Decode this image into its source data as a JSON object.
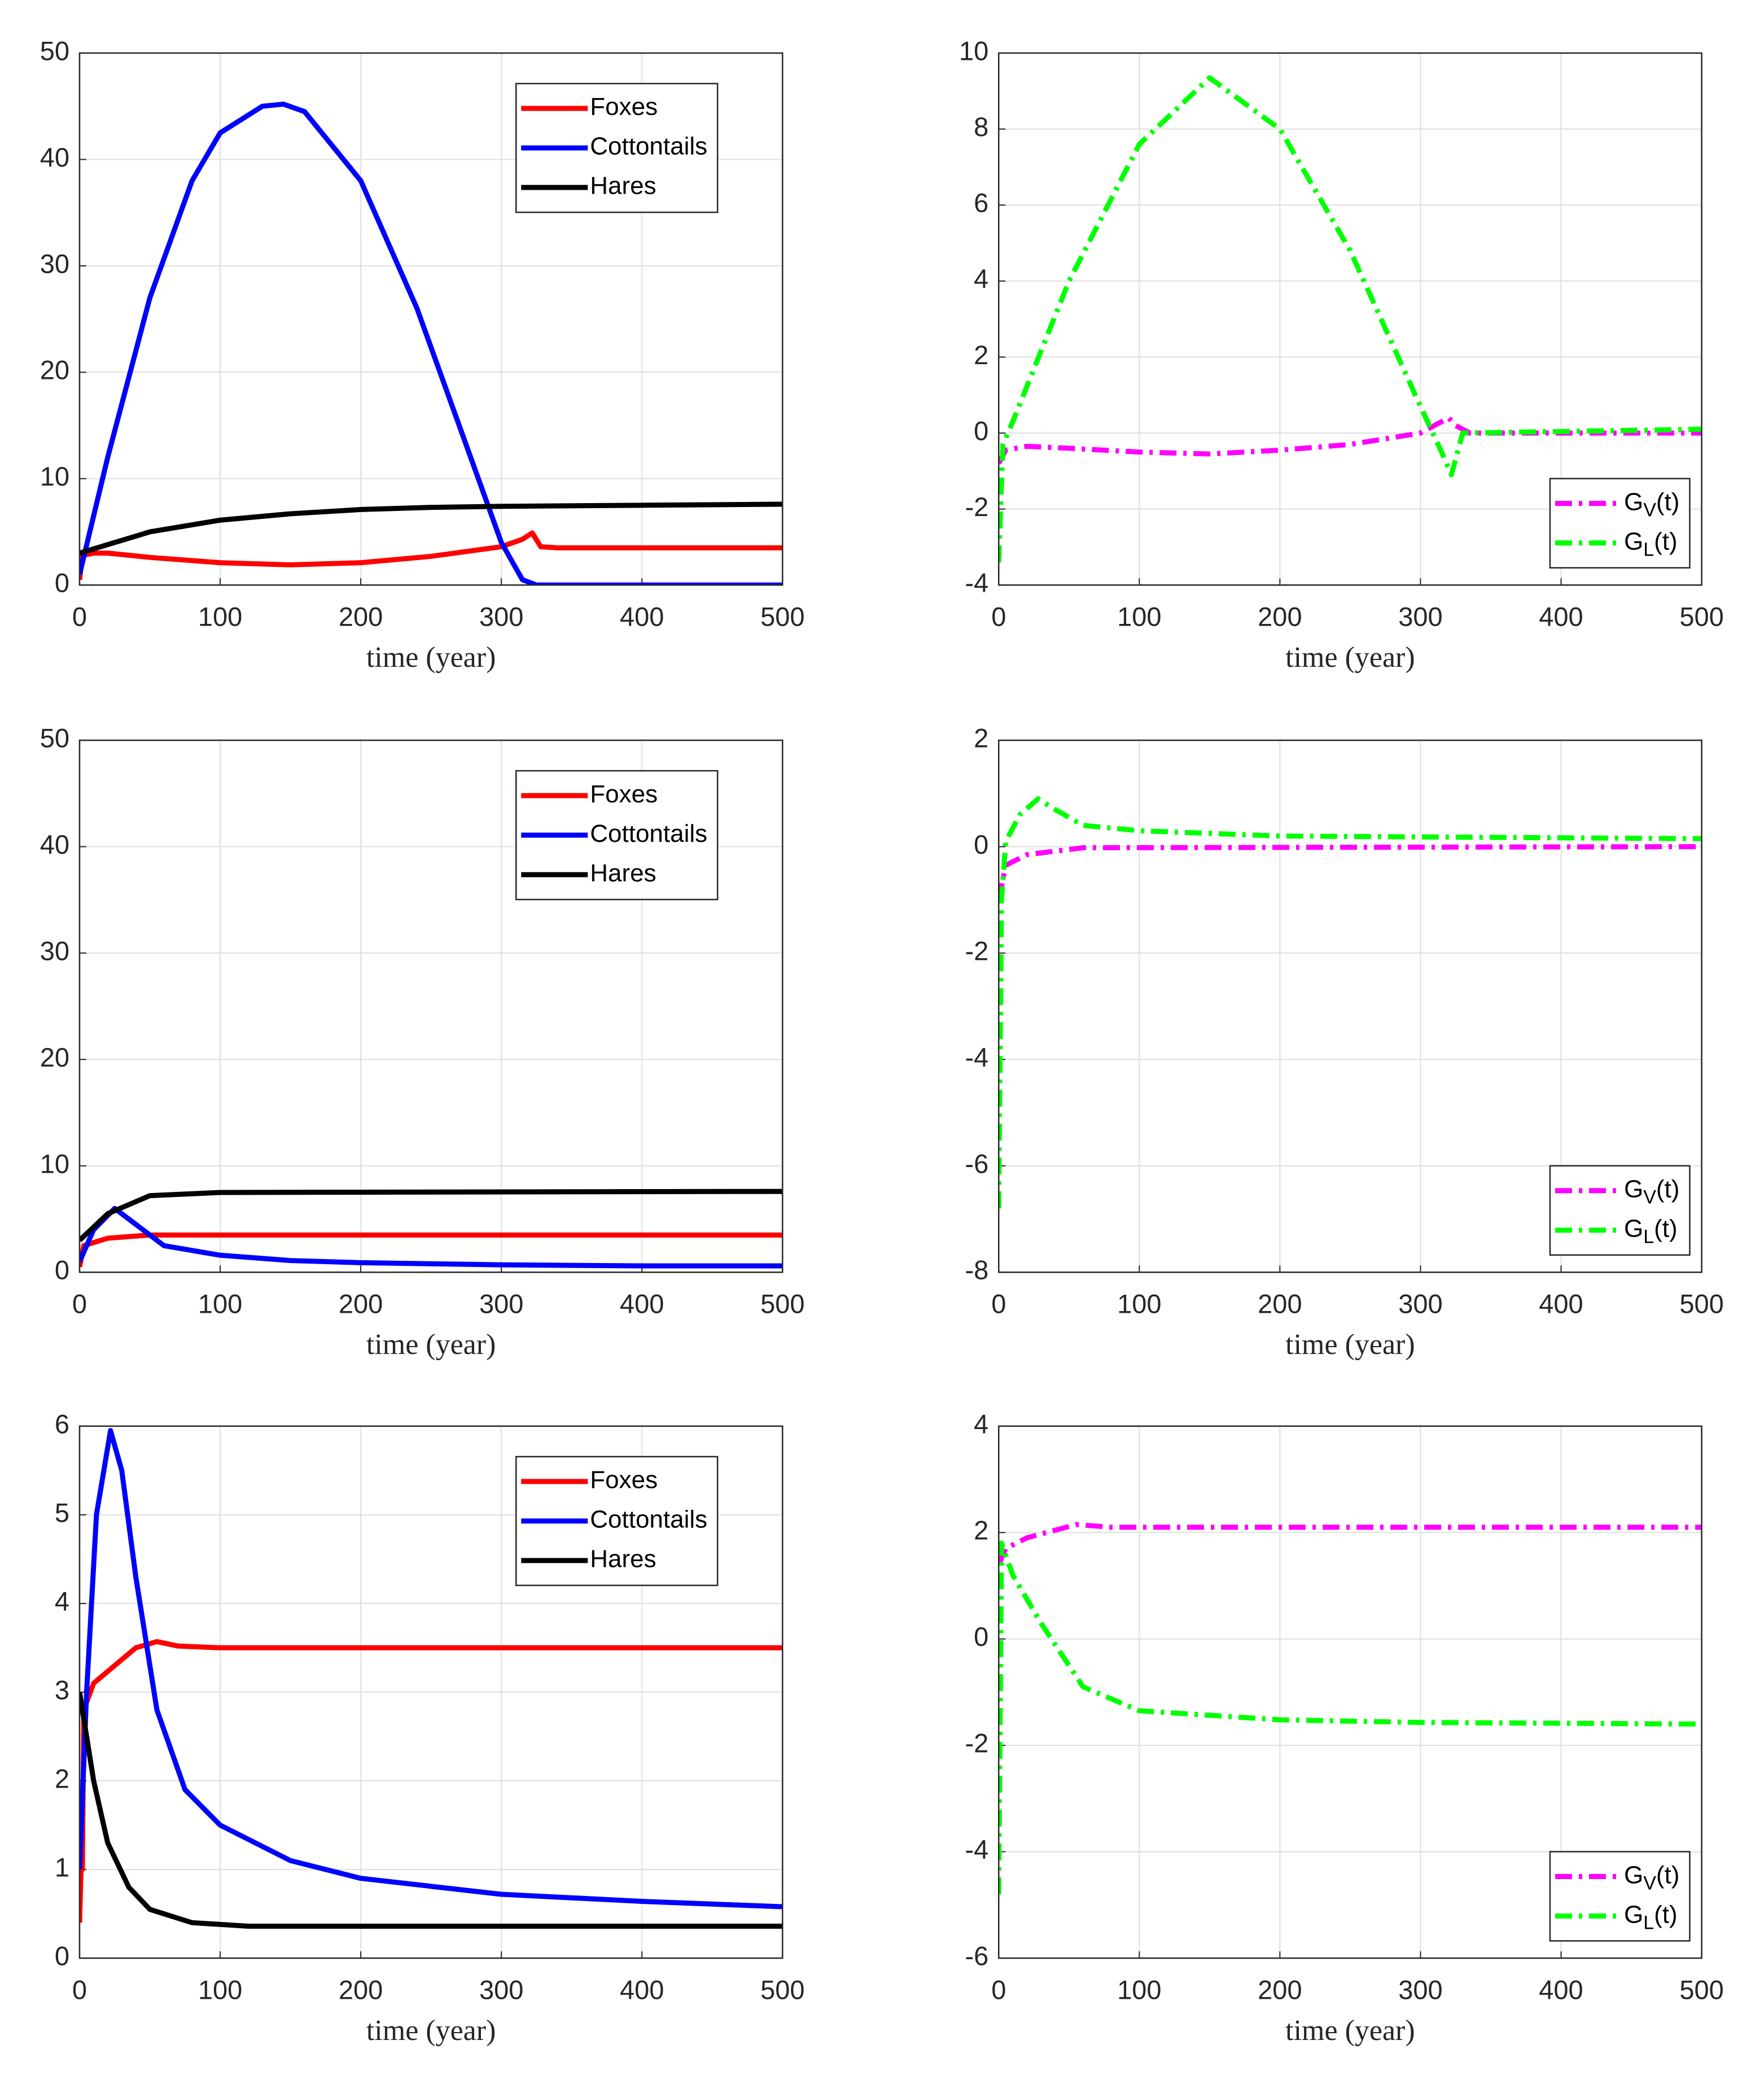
{
  "chart_data": [
    {
      "type": "line",
      "xlabel": "time (year)",
      "xlim": [
        0,
        500
      ],
      "xticks": [
        0,
        100,
        200,
        300,
        400,
        500
      ],
      "ylim": [
        0,
        50
      ],
      "yticks": [
        0,
        10,
        20,
        30,
        40,
        50
      ],
      "grid": true,
      "legend": "upper right",
      "series": [
        {
          "name": "Foxes",
          "color": "#ff0000",
          "linestyle": "solid",
          "x": [
            0,
            2,
            10,
            20,
            50,
            100,
            150,
            200,
            250,
            300,
            315,
            322,
            328,
            340,
            400,
            500
          ],
          "values": [
            0.5,
            2.8,
            3,
            3,
            2.6,
            2.1,
            1.9,
            2.1,
            2.7,
            3.6,
            4.3,
            4.9,
            3.6,
            3.5,
            3.5,
            3.5
          ]
        },
        {
          "name": "Cottontails",
          "color": "#0000ff",
          "linestyle": "solid",
          "x": [
            0,
            20,
            50,
            80,
            100,
            130,
            145,
            160,
            200,
            240,
            270,
            300,
            315,
            325,
            500
          ],
          "values": [
            1,
            12,
            27,
            38,
            42.5,
            45,
            45.2,
            44.5,
            38,
            26,
            15,
            4,
            0.5,
            0,
            0
          ]
        },
        {
          "name": "Hares",
          "color": "#000000",
          "linestyle": "solid",
          "x": [
            0,
            20,
            50,
            100,
            150,
            200,
            250,
            300,
            400,
            500
          ],
          "values": [
            3,
            3.8,
            5,
            6.1,
            6.7,
            7.1,
            7.3,
            7.4,
            7.5,
            7.6
          ]
        }
      ]
    },
    {
      "type": "line",
      "xlabel": "time (year)",
      "xlim": [
        0,
        500
      ],
      "xticks": [
        0,
        100,
        200,
        300,
        400,
        500
      ],
      "ylim": [
        -4,
        10
      ],
      "yticks": [
        -4,
        -2,
        0,
        2,
        4,
        6,
        8,
        10
      ],
      "grid": true,
      "legend": "lower right",
      "series": [
        {
          "name": "G_V(t)",
          "color": "#ff00ff",
          "linestyle": "dashdot",
          "x": [
            0,
            5,
            20,
            50,
            100,
            150,
            200,
            250,
            300,
            320,
            325,
            335,
            500
          ],
          "values": [
            -0.8,
            -0.45,
            -0.35,
            -0.4,
            -0.5,
            -0.55,
            -0.45,
            -0.3,
            0,
            0.4,
            0.2,
            0,
            0
          ]
        },
        {
          "name": "G_L(t)",
          "color": "#00ff00",
          "linestyle": "dashdot",
          "x": [
            0,
            3,
            10,
            50,
            100,
            150,
            200,
            250,
            300,
            315,
            322,
            330,
            500
          ],
          "values": [
            -3.4,
            -0.3,
            0.3,
            4,
            7.6,
            9.35,
            8,
            4.8,
            0.7,
            -0.5,
            -1.1,
            0,
            0.1
          ]
        }
      ]
    },
    {
      "type": "line",
      "xlabel": "time (year)",
      "xlim": [
        0,
        500
      ],
      "xticks": [
        0,
        100,
        200,
        300,
        400,
        500
      ],
      "ylim": [
        0,
        50
      ],
      "yticks": [
        0,
        10,
        20,
        30,
        40,
        50
      ],
      "grid": true,
      "legend": "upper right",
      "series": [
        {
          "name": "Foxes",
          "color": "#ff0000",
          "linestyle": "solid",
          "x": [
            0,
            3,
            20,
            50,
            100,
            500
          ],
          "values": [
            0.5,
            2.5,
            3.2,
            3.5,
            3.5,
            3.5
          ]
        },
        {
          "name": "Cottontails",
          "color": "#0000ff",
          "linestyle": "solid",
          "x": [
            0,
            10,
            25,
            40,
            60,
            100,
            150,
            200,
            300,
            400,
            500
          ],
          "values": [
            1,
            4,
            6,
            4.5,
            2.5,
            1.6,
            1.1,
            0.9,
            0.7,
            0.6,
            0.6
          ]
        },
        {
          "name": "Hares",
          "color": "#000000",
          "linestyle": "solid",
          "x": [
            0,
            20,
            50,
            100,
            500
          ],
          "values": [
            3,
            5.5,
            7.2,
            7.5,
            7.6
          ]
        }
      ]
    },
    {
      "type": "line",
      "xlabel": "time (year)",
      "xlim": [
        0,
        500
      ],
      "xticks": [
        0,
        100,
        200,
        300,
        400,
        500
      ],
      "ylim": [
        -8,
        2
      ],
      "yticks": [
        -8,
        -6,
        -4,
        -2,
        0,
        2
      ],
      "grid": true,
      "legend": "lower right",
      "series": [
        {
          "name": "G_V(t)",
          "color": "#ff00ff",
          "linestyle": "dashdot",
          "x": [
            0,
            5,
            20,
            60,
            500
          ],
          "values": [
            -1,
            -0.35,
            -0.15,
            -0.02,
            0
          ]
        },
        {
          "name": "G_L(t)",
          "color": "#00ff00",
          "linestyle": "dashdot",
          "x": [
            0,
            2,
            5,
            15,
            28,
            40,
            60,
            100,
            200,
            500
          ],
          "values": [
            -6.8,
            -1,
            0.1,
            0.6,
            0.9,
            0.7,
            0.4,
            0.3,
            0.2,
            0.15
          ]
        }
      ]
    },
    {
      "type": "line",
      "xlabel": "time (year)",
      "xlim": [
        0,
        500
      ],
      "xticks": [
        0,
        100,
        200,
        300,
        400,
        500
      ],
      "ylim": [
        0,
        6
      ],
      "yticks": [
        0,
        1,
        2,
        3,
        4,
        5,
        6
      ],
      "grid": true,
      "legend": "upper right",
      "series": [
        {
          "name": "Foxes",
          "color": "#ff0000",
          "linestyle": "solid",
          "x": [
            0,
            1,
            2,
            3,
            10,
            25,
            40,
            55,
            70,
            100,
            500
          ],
          "values": [
            0.4,
            1,
            1,
            2.8,
            3.1,
            3.3,
            3.5,
            3.57,
            3.52,
            3.5,
            3.5
          ]
        },
        {
          "name": "Cottontails",
          "color": "#0000ff",
          "linestyle": "solid",
          "x": [
            0,
            5,
            12,
            22,
            30,
            40,
            55,
            75,
            100,
            150,
            200,
            300,
            400,
            500
          ],
          "values": [
            1,
            3,
            5,
            5.95,
            5.5,
            4.3,
            2.8,
            1.9,
            1.5,
            1.1,
            0.9,
            0.72,
            0.64,
            0.58
          ]
        },
        {
          "name": "Hares",
          "color": "#000000",
          "linestyle": "solid",
          "x": [
            0,
            10,
            20,
            35,
            50,
            80,
            120,
            500
          ],
          "values": [
            3,
            2,
            1.3,
            0.8,
            0.55,
            0.4,
            0.36,
            0.36
          ]
        }
      ]
    },
    {
      "type": "line",
      "xlabel": "time (year)",
      "xlim": [
        0,
        500
      ],
      "xticks": [
        0,
        100,
        200,
        300,
        400,
        500
      ],
      "ylim": [
        -6,
        4
      ],
      "yticks": [
        -6,
        -4,
        -2,
        0,
        2,
        4
      ],
      "grid": true,
      "legend": "lower right",
      "series": [
        {
          "name": "G_V(t)",
          "color": "#ff00ff",
          "linestyle": "dashdot",
          "x": [
            0,
            5,
            20,
            55,
            80,
            500
          ],
          "values": [
            1.4,
            1.7,
            1.9,
            2.15,
            2.1,
            2.1
          ]
        },
        {
          "name": "G_L(t)",
          "color": "#00ff00",
          "linestyle": "dashdot",
          "x": [
            0,
            2,
            10,
            30,
            60,
            100,
            200,
            300,
            500
          ],
          "values": [
            -4.8,
            1.8,
            1.2,
            0.3,
            -0.9,
            -1.35,
            -1.52,
            -1.57,
            -1.6
          ]
        }
      ]
    }
  ]
}
